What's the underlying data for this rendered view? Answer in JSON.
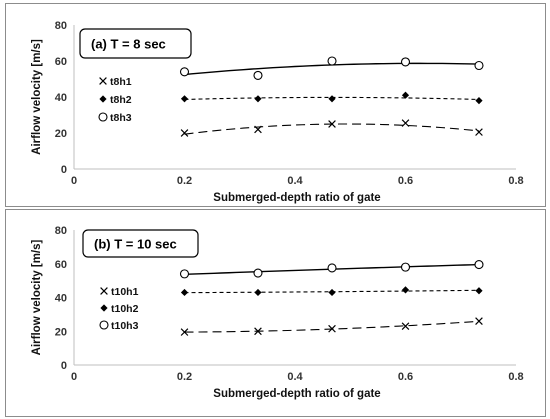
{
  "chart_data": [
    {
      "type": "scatter",
      "title": "(a)  T = 8 sec",
      "xlabel": "Submerged-depth ratio of gate",
      "ylabel": "Airflow velocity [m/s]",
      "xlim": [
        0,
        0.8
      ],
      "ylim": [
        0,
        80
      ],
      "xticks": [
        "0",
        "0.2",
        "0.4",
        "0.6",
        "0.8"
      ],
      "yticks": [
        "0",
        "20",
        "40",
        "60",
        "80"
      ],
      "grid": "none",
      "legend_position": "left",
      "trendlines": true,
      "series": [
        {
          "name": "t8h1",
          "marker": "x",
          "line": "dash",
          "x": [
            0.2,
            0.333,
            0.467,
            0.6,
            0.733
          ],
          "y": [
            20,
            22,
            25,
            25.5,
            20.5
          ]
        },
        {
          "name": "t8h2",
          "marker": "diamond",
          "line": "short-dash",
          "x": [
            0.2,
            0.333,
            0.467,
            0.6,
            0.733
          ],
          "y": [
            39,
            39,
            39,
            41,
            38
          ]
        },
        {
          "name": "t8h3",
          "marker": "circle",
          "line": "solid",
          "x": [
            0.2,
            0.333,
            0.467,
            0.6,
            0.733
          ],
          "y": [
            54,
            52,
            60,
            59.5,
            57.5
          ]
        }
      ]
    },
    {
      "type": "scatter",
      "title": "(b)  T = 10 sec",
      "xlabel": "Submerged-depth ratio of gate",
      "ylabel": "Airflow velocity [m/s]",
      "xlim": [
        0,
        0.8
      ],
      "ylim": [
        0,
        80
      ],
      "xticks": [
        "0",
        "0.2",
        "0.4",
        "0.6",
        "0.8"
      ],
      "yticks": [
        "0",
        "20",
        "40",
        "60",
        "80"
      ],
      "grid": "none",
      "legend_position": "left",
      "trendlines": true,
      "series": [
        {
          "name": "t10h1",
          "marker": "x",
          "line": "dash",
          "x": [
            0.2,
            0.333,
            0.467,
            0.6,
            0.733
          ],
          "y": [
            19.5,
            20,
            21.5,
            23,
            26
          ]
        },
        {
          "name": "t10h2",
          "marker": "diamond",
          "line": "short-dash",
          "x": [
            0.2,
            0.333,
            0.467,
            0.6,
            0.733
          ],
          "y": [
            43,
            43,
            43,
            44.5,
            44
          ]
        },
        {
          "name": "t10h3",
          "marker": "circle",
          "line": "solid",
          "x": [
            0.2,
            0.333,
            0.467,
            0.6,
            0.733
          ],
          "y": [
            54,
            54.5,
            57.5,
            58,
            59.5
          ]
        }
      ]
    }
  ]
}
